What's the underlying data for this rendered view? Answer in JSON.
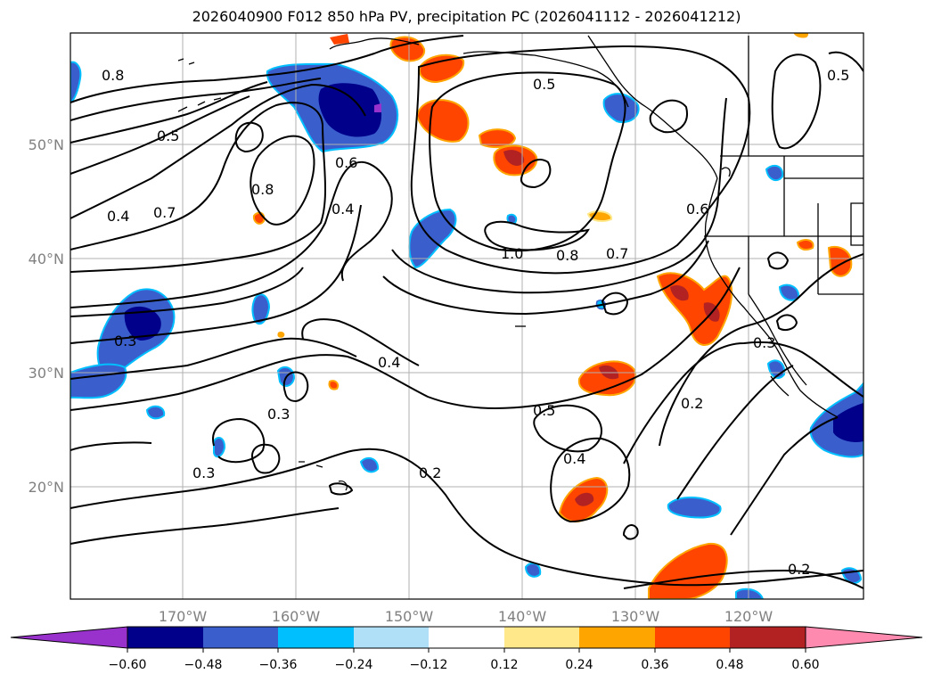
{
  "title": "2026040900 F012 850 hPa PV, precipitation PC (2026041112 - 2026041212)",
  "lat_labels": [
    "50°N",
    "40°N",
    "30°N",
    "20°N"
  ],
  "lon_labels": [
    "170°W",
    "160°W",
    "150°W",
    "140°W",
    "130°W",
    "120°W"
  ],
  "contour_labels": [
    "0.8",
    "0.5",
    "0.4",
    "0.7",
    "0.8",
    "0.6",
    "0.4",
    "1.0",
    "0.8",
    "0.7",
    "0.6",
    "0.5",
    "0.3",
    "0.4",
    "0.3",
    "0.3",
    "0.5",
    "0.2",
    "0.4",
    "0.2",
    "0.3",
    "0.2",
    "0.5"
  ],
  "colorbar": {
    "ticks": [
      "−0.60",
      "−0.48",
      "−0.36",
      "−0.24",
      "−0.12",
      "0.12",
      "0.24",
      "0.36",
      "0.48",
      "0.60"
    ],
    "colors": [
      "#9932cc",
      "#00008b",
      "#3a5fcd",
      "#00bfff",
      "#b0e0f8",
      "#ffffff",
      "#ffe88a",
      "#ffa500",
      "#ff4500",
      "#b22222",
      "#ff8ab0"
    ]
  }
}
